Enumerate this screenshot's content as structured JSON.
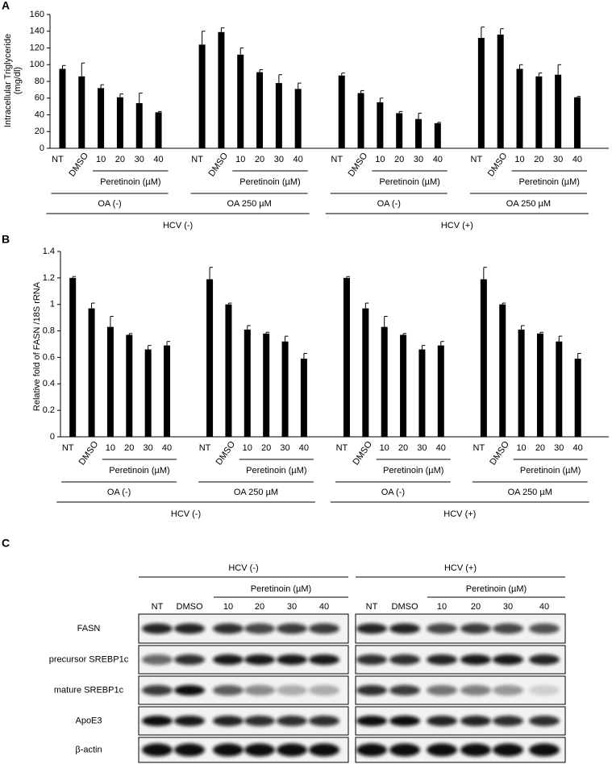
{
  "chart_data": [
    {
      "type": "bar",
      "panel": "A",
      "y_label": [
        "Intracellular Triglyceride",
        "(mg/dl)"
      ],
      "categories": [
        "NT",
        "DMSO",
        "10",
        "20",
        "30",
        "40",
        "NT",
        "DMSO",
        "10",
        "20",
        "30",
        "40",
        "NT",
        "DMSO",
        "10",
        "20",
        "30",
        "40",
        "NT",
        "DMSO",
        "10",
        "20",
        "30",
        "40"
      ],
      "values": [
        95,
        86,
        72,
        61,
        54,
        43,
        124,
        139,
        112,
        91,
        78,
        71,
        87,
        66,
        55,
        42,
        35,
        30,
        132,
        136,
        95,
        86,
        88,
        61
      ],
      "errors": [
        4,
        16,
        4,
        4,
        12,
        1,
        16,
        5,
        8,
        3,
        10,
        7,
        3,
        3,
        5,
        2,
        7,
        1,
        13,
        7,
        5,
        4,
        12,
        1
      ],
      "color": "#000000",
      "ylim": [
        0,
        160
      ],
      "yticks": [
        0,
        20,
        40,
        60,
        80,
        100,
        120,
        140,
        160
      ],
      "treatment_labels": [
        "Peretinoin (µM)",
        "Peretinoin (µM)",
        "Peretinoin (µM)",
        "Peretinoin (µM)"
      ],
      "oa_labels": [
        "OA (-)",
        "OA 250 µM",
        "OA (-)",
        "OA 250 µM"
      ],
      "hcv_labels": [
        "HCV (-)",
        "HCV (+)"
      ]
    },
    {
      "type": "bar",
      "panel": "B",
      "y_label": [
        "Relative fold of  FASN /18S rRNA"
      ],
      "categories": [
        "NT",
        "DMSO",
        "10",
        "20",
        "30",
        "40",
        "NT",
        "DMSO",
        "10",
        "20",
        "30",
        "40",
        "NT",
        "DMSO",
        "10",
        "20",
        "30",
        "40",
        "NT",
        "DMSO",
        "10",
        "20",
        "30",
        "40"
      ],
      "values": [
        1.2,
        0.97,
        0.83,
        0.77,
        0.66,
        0.69,
        1.19,
        1.0,
        0.81,
        0.78,
        0.72,
        0.59,
        1.2,
        0.97,
        0.83,
        0.77,
        0.66,
        0.69,
        1.19,
        1.0,
        0.81,
        0.78,
        0.72,
        0.59
      ],
      "errors": [
        0.01,
        0.04,
        0.08,
        0.01,
        0.03,
        0.03,
        0.09,
        0.01,
        0.03,
        0.01,
        0.04,
        0.04,
        0.01,
        0.04,
        0.08,
        0.01,
        0.03,
        0.03,
        0.09,
        0.01,
        0.03,
        0.01,
        0.04,
        0.04
      ],
      "color": "#000000",
      "ylim": [
        0,
        1.4
      ],
      "yticks": [
        0,
        0.2,
        0.4,
        0.6,
        0.8,
        1,
        1.2,
        1.4
      ],
      "treatment_labels": [
        "Peretinoin (µM)",
        "Peretinoin (µM)",
        "Peretinoin (µM)",
        "Peretinoin (µM)"
      ],
      "oa_labels": [
        "OA (-)",
        "OA 250 µM",
        "OA (-)",
        "OA 250 µM"
      ],
      "hcv_labels": [
        "HCV (-)",
        "HCV (+)"
      ]
    }
  ],
  "panel_c": {
    "panel": "C",
    "hcv_labels": [
      "HCV (-)",
      "HCV (+)"
    ],
    "treatment_labels": [
      "Peretinoin (µM)",
      "Peretinoin (µM)"
    ],
    "lanes": [
      "NT",
      "DMSO",
      "10",
      "20",
      "30",
      "40",
      "NT",
      "DMSO",
      "10",
      "20",
      "30",
      "40"
    ],
    "rows": [
      "FASN",
      "precursor SREBP1c",
      "mature SREBP1c",
      "ApoE3",
      "β-actin"
    ]
  }
}
